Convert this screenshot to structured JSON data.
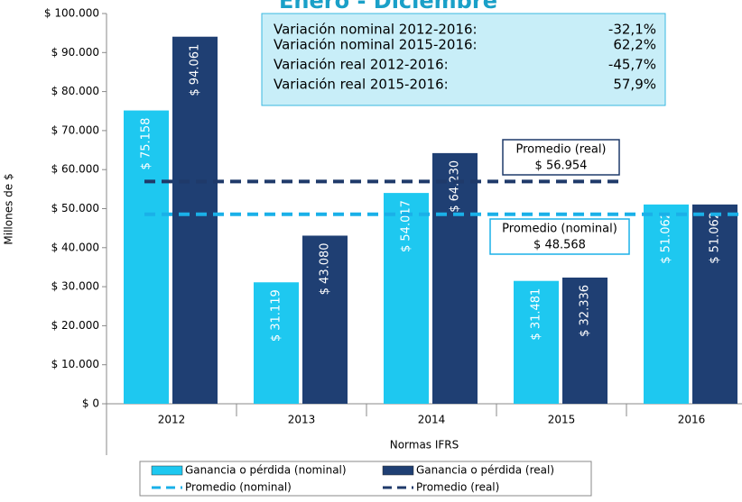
{
  "chart_data": {
    "type": "bar",
    "title": "Enero - Diciembre",
    "y_label": "Millones de $",
    "x_label": "Normas IFRS",
    "categories": [
      "2012",
      "2013",
      "2014",
      "2015",
      "2016"
    ],
    "series": [
      {
        "name": "Ganancia o pérdida (nominal)",
        "color": "#1ec8f0",
        "values": [
          75158,
          31119,
          54017,
          31481,
          51062
        ],
        "value_labels": [
          "$ 75.158",
          "$ 31.119",
          "$ 54.017",
          "$ 31.481",
          "$ 51.062"
        ]
      },
      {
        "name": "Ganancia o pérdida (real)",
        "color": "#1f3f73",
        "values": [
          94061,
          43080,
          64230,
          32336,
          51062
        ],
        "value_labels": [
          "$ 94.061",
          "$ 43.080",
          "$ 64.230",
          "$ 32.336",
          "$ 51.062"
        ]
      }
    ],
    "averages": [
      {
        "name": "Promedio (nominal)",
        "color": "#1ab0e8",
        "value": 48568,
        "value_label": "$ 48.568"
      },
      {
        "name": "Promedio (real)",
        "color": "#1f3a6a",
        "value": 56954,
        "value_label": "$ 56.954"
      }
    ],
    "info_box": [
      {
        "text": "Variación nominal 2012-2016:",
        "value": "-32,1%"
      },
      {
        "text": "Variación nominal 2015-2016:",
        "value": "62,2%"
      },
      {
        "text": "Variación real 2012-2016:",
        "value": "-45,7%"
      },
      {
        "text": "Variación real 2015-2016:",
        "value": "57,9%"
      }
    ],
    "ylim": [
      0,
      100000
    ],
    "yticks": [
      {
        "value": 0,
        "label": "$ 0"
      },
      {
        "value": 10000,
        "label": "$ 10.000"
      },
      {
        "value": 20000,
        "label": "$ 20.000"
      },
      {
        "value": 30000,
        "label": "$ 30.000"
      },
      {
        "value": 40000,
        "label": "$ 40.000"
      },
      {
        "value": 50000,
        "label": "$ 50.000"
      },
      {
        "value": 60000,
        "label": "$ 60.000"
      },
      {
        "value": 70000,
        "label": "$ 70.000"
      },
      {
        "value": 80000,
        "label": "$ 80.000"
      },
      {
        "value": 90000,
        "label": "$ 90.000"
      },
      {
        "value": 100000,
        "label": "$ 100.000"
      }
    ],
    "grid": false,
    "legend": "bottom"
  }
}
